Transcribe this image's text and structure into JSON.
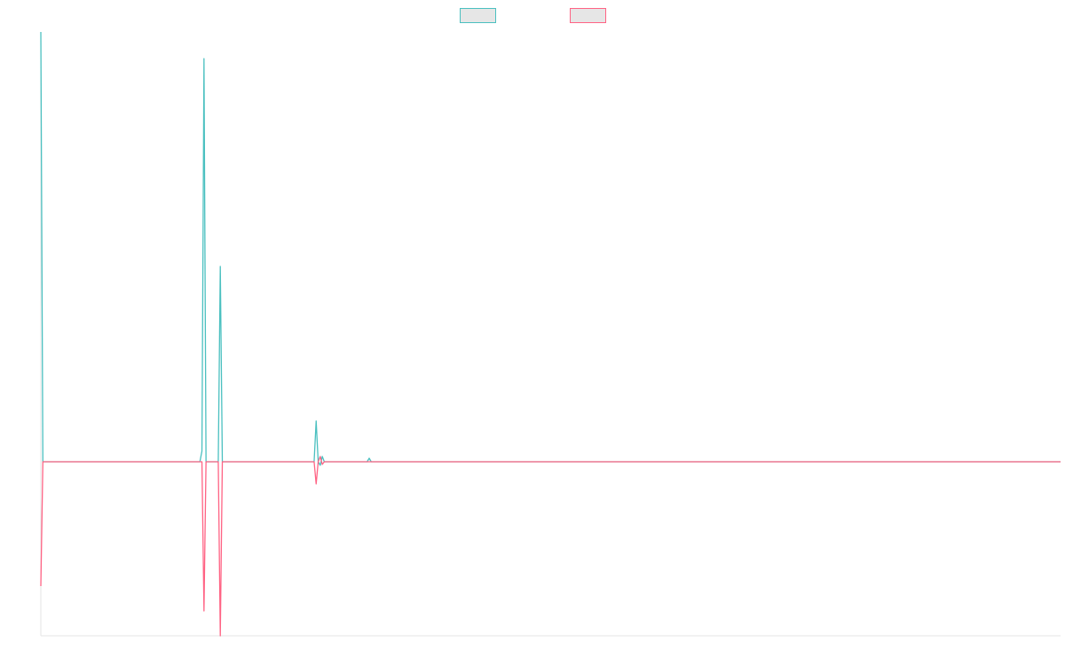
{
  "chart_data": {
    "type": "line",
    "x": [
      0,
      1,
      78,
      79,
      80,
      81,
      87,
      88,
      89,
      134,
      135,
      136,
      137,
      138,
      139,
      160,
      161,
      162,
      500
    ],
    "xlim": [
      0,
      500
    ],
    "ylim": [
      -196,
      484
    ],
    "legend": "top",
    "series": [
      {
        "color": "#4bc0c0",
        "values": [
          484,
          0,
          0,
          12,
          454,
          0,
          0,
          220,
          0,
          0,
          46,
          0,
          -4,
          6,
          0,
          0,
          4,
          0,
          0
        ]
      },
      {
        "color": "#ff6384",
        "values": [
          -140,
          0,
          0,
          0,
          -168,
          0,
          0,
          -196,
          0,
          0,
          -25,
          0,
          6,
          -3,
          0,
          0,
          0,
          0,
          0
        ]
      }
    ]
  }
}
